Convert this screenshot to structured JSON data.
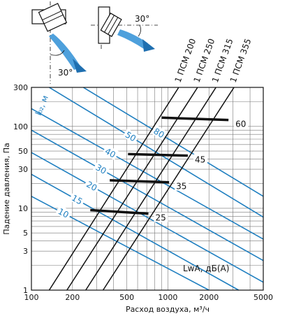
{
  "chart_data": {
    "type": "line",
    "xlabel": "Расход воздуха, м³/ч",
    "ylabel": "Падение давления, Па",
    "xscale": "log",
    "yscale": "log",
    "xlim": [
      100,
      5000
    ],
    "ylim": [
      1,
      300
    ],
    "xticks": [
      100,
      200,
      500,
      1000,
      2000,
      5000
    ],
    "yticks": [
      1,
      3,
      5,
      10,
      30,
      50,
      100,
      300
    ],
    "x_tick_labels": [
      "100",
      "200",
      "500",
      "1000",
      "2000",
      "5000"
    ],
    "y_tick_labels": [
      "1",
      "3",
      "5",
      "10",
      "30",
      "50",
      "100",
      "300"
    ],
    "grid": true,
    "series": [
      {
        "name": "1 ПСМ 200",
        "points": [
          [
            135,
            1
          ],
          [
            1200,
            300
          ]
        ]
      },
      {
        "name": "1 ПСМ 250",
        "points": [
          [
            182,
            1
          ],
          [
            1650,
            300
          ]
        ]
      },
      {
        "name": "1 ПСМ 315",
        "points": [
          [
            250,
            1
          ],
          [
            2250,
            300
          ]
        ]
      },
      {
        "name": "1 ПСМ 355",
        "points": [
          [
            335,
            1
          ],
          [
            3050,
            300
          ]
        ]
      }
    ],
    "throw_lines": {
      "label": "l₀₂, м",
      "color": "#1f7fc0",
      "values": [
        10,
        15,
        20,
        30,
        40,
        50,
        80
      ],
      "value_labels": [
        "10",
        "15",
        "20",
        "30",
        "40",
        "50",
        "80"
      ],
      "lines": [
        {
          "value": 10,
          "points": [
            [
              100,
              14
            ],
            [
              2000,
              1
            ]
          ]
        },
        {
          "value": 15,
          "points": [
            [
              100,
              26
            ],
            [
              3300,
              1
            ]
          ]
        },
        {
          "value": 20,
          "points": [
            [
              100,
              48
            ],
            [
              5000,
              1.25
            ]
          ]
        },
        {
          "value": 30,
          "points": [
            [
              100,
              90
            ],
            [
              5000,
              2.3
            ]
          ]
        },
        {
          "value": 40,
          "points": [
            [
              100,
              165
            ],
            [
              5000,
              4.2
            ]
          ]
        },
        {
          "value": 50,
          "points": [
            [
              135,
              300
            ],
            [
              5000,
              7.8
            ]
          ]
        },
        {
          "value": 80,
          "points": [
            [
              240,
              300
            ],
            [
              5000,
              14
            ]
          ]
        }
      ]
    },
    "sound_levels": {
      "label": "LwA, дБ(А)",
      "values": [
        25,
        35,
        45,
        60
      ],
      "value_labels": [
        "25",
        "35",
        "45",
        "60"
      ],
      "segments": [
        {
          "value": 25,
          "points": [
            [
              270,
              9.5
            ],
            [
              720,
              8.6
            ]
          ]
        },
        {
          "value": 35,
          "points": [
            [
              375,
              22
            ],
            [
              1020,
              20.8
            ]
          ]
        },
        {
          "value": 45,
          "points": [
            [
              510,
              46
            ],
            [
              1400,
              44
            ]
          ]
        },
        {
          "value": 60,
          "points": [
            [
              900,
              128
            ],
            [
              2780,
              120
            ]
          ]
        }
      ]
    },
    "angle_labels": [
      "30°",
      "30°"
    ]
  }
}
